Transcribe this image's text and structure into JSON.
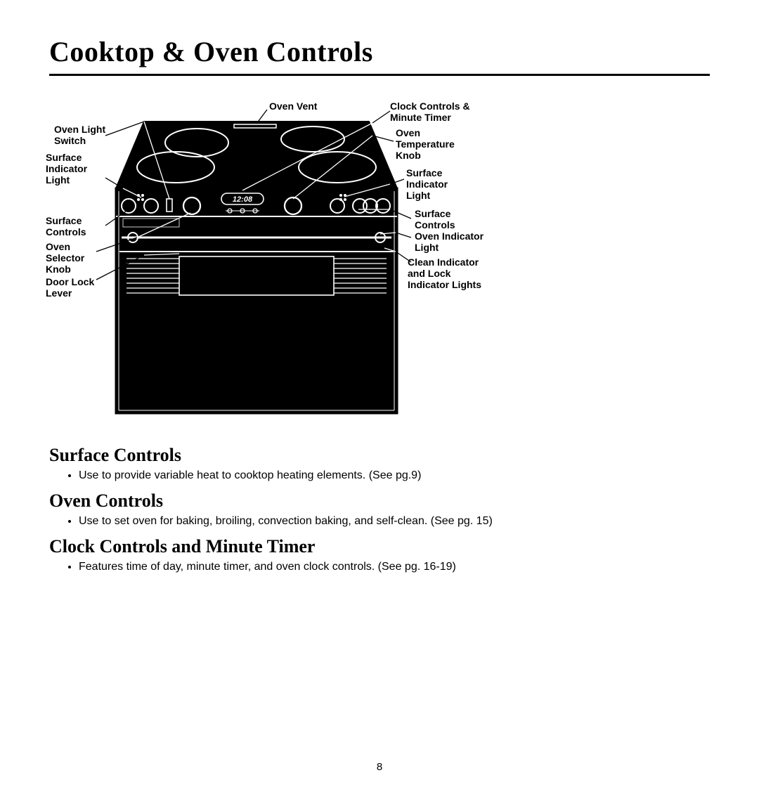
{
  "title": "Cooktop & Oven Controls",
  "clockDisplay": "12:08",
  "callouts": {
    "ovenVent": "Oven Vent",
    "ovenLightSwitch": "Oven Light\nSwitch",
    "surfaceIndicatorLightL": "Surface\nIndicator\nLight",
    "surfaceControlsL": "Surface\nControls",
    "ovenSelectorKnob": "Oven\nSelector\nKnob",
    "doorLockLever": "Door Lock\nLever",
    "clockControls": "Clock Controls &\nMinute Timer",
    "ovenTempKnob": "Oven\nTemperature\nKnob",
    "surfaceIndicatorLightR": "Surface\nIndicator\nLight",
    "surfaceControlsR": "Surface\nControls",
    "ovenIndicatorLight": "Oven Indicator\nLight",
    "cleanIndicator": "Clean Indicator\nand Lock\nIndicator Lights"
  },
  "sections": [
    {
      "heading": "Surface Controls",
      "items": [
        "Use to provide variable heat to cooktop heating elements. (See pg.9)"
      ]
    },
    {
      "heading": "Oven Controls",
      "items": [
        "Use to set oven for baking, broiling, convection baking, and self-clean. (See pg. 15)"
      ]
    },
    {
      "heading": "Clock Controls and Minute Timer",
      "items": [
        "Features time of day, minute timer, and oven clock controls. (See pg. 16-19)"
      ]
    }
  ],
  "pageNumber": "8",
  "colors": {
    "ink": "#000000",
    "paper": "#ffffff"
  }
}
